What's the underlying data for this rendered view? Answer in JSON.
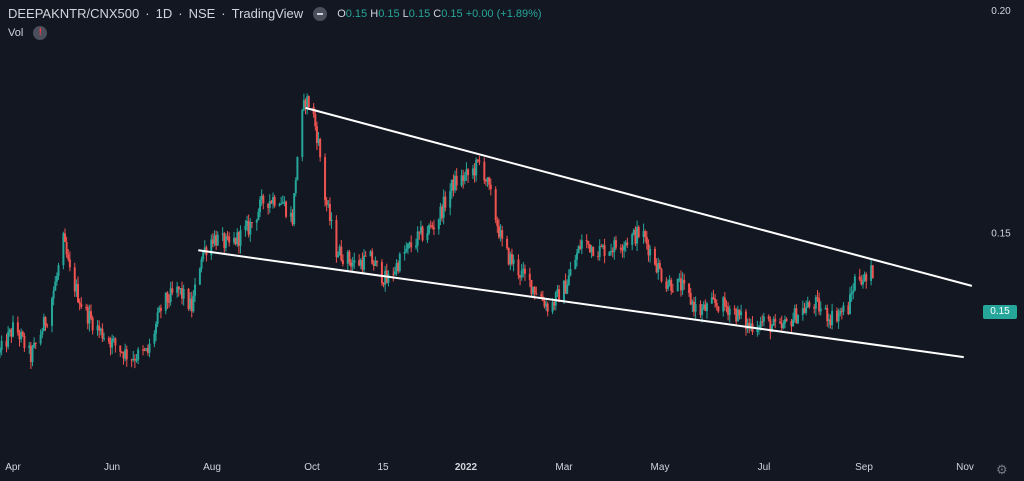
{
  "header": {
    "symbol": "DEEPAKNTR/CNX500",
    "interval": "1D",
    "exchange": "NSE",
    "source": "TradingView",
    "ohlc": {
      "o_label": "O",
      "o": "0.15",
      "h_label": "H",
      "h": "0.15",
      "l_label": "L",
      "l": "0.15",
      "c_label": "C",
      "c": "0.15",
      "change": "+0.00 (+1.89%)"
    },
    "vol_label": "Vol"
  },
  "last_price": "0.15",
  "colors": {
    "background": "#131722",
    "up": "#26a69a",
    "down": "#ef5350",
    "trendline": "#ffffff",
    "text": "#d1d4dc"
  },
  "chart_data": {
    "type": "candlestick",
    "xlabel": "",
    "ylabel": "",
    "ylim": [
      0.1,
      0.2
    ],
    "y_ticks": [
      "0.20",
      "0.15"
    ],
    "x_ticks": [
      "Apr",
      "Jun",
      "Aug",
      "Oct",
      "15",
      "2022",
      "Mar",
      "May",
      "Jul",
      "Sep",
      "Nov"
    ],
    "x_start": "2021-04-01",
    "x_end": "2022-11-25",
    "series_close": [
      [
        "2021-04-01",
        0.123
      ],
      [
        "2021-04-10",
        0.129
      ],
      [
        "2021-04-20",
        0.122
      ],
      [
        "2021-04-30",
        0.131
      ],
      [
        "2021-05-06",
        0.14
      ],
      [
        "2021-05-10",
        0.148
      ],
      [
        "2021-05-14",
        0.141
      ],
      [
        "2021-05-22",
        0.133
      ],
      [
        "2021-06-01",
        0.128
      ],
      [
        "2021-06-10",
        0.125
      ],
      [
        "2021-06-20",
        0.122
      ],
      [
        "2021-07-01",
        0.123
      ],
      [
        "2021-07-10",
        0.134
      ],
      [
        "2021-07-20",
        0.137
      ],
      [
        "2021-07-28",
        0.133
      ],
      [
        "2021-08-03",
        0.145
      ],
      [
        "2021-08-10",
        0.149
      ],
      [
        "2021-08-20",
        0.147
      ],
      [
        "2021-09-01",
        0.151
      ],
      [
        "2021-09-10",
        0.157
      ],
      [
        "2021-09-20",
        0.158
      ],
      [
        "2021-09-28",
        0.153
      ],
      [
        "2021-10-02",
        0.172
      ],
      [
        "2021-10-06",
        0.18
      ],
      [
        "2021-10-10",
        0.178
      ],
      [
        "2021-10-14",
        0.17
      ],
      [
        "2021-10-18",
        0.158
      ],
      [
        "2021-10-25",
        0.146
      ],
      [
        "2021-11-05",
        0.143
      ],
      [
        "2021-11-15",
        0.144
      ],
      [
        "2021-11-25",
        0.139
      ],
      [
        "2021-12-05",
        0.145
      ],
      [
        "2021-12-15",
        0.149
      ],
      [
        "2021-12-25",
        0.152
      ],
      [
        "2022-01-05",
        0.161
      ],
      [
        "2022-01-15",
        0.163
      ],
      [
        "2022-01-22",
        0.166
      ],
      [
        "2022-01-28",
        0.158
      ],
      [
        "2022-02-05",
        0.146
      ],
      [
        "2022-02-15",
        0.141
      ],
      [
        "2022-02-25",
        0.137
      ],
      [
        "2022-03-05",
        0.133
      ],
      [
        "2022-03-15",
        0.138
      ],
      [
        "2022-03-25",
        0.148
      ],
      [
        "2022-04-05",
        0.146
      ],
      [
        "2022-04-15",
        0.147
      ],
      [
        "2022-04-25",
        0.149
      ],
      [
        "2022-05-01",
        0.15
      ],
      [
        "2022-05-06",
        0.146
      ],
      [
        "2022-05-15",
        0.139
      ],
      [
        "2022-05-25",
        0.138
      ],
      [
        "2022-06-05",
        0.132
      ],
      [
        "2022-06-15",
        0.134
      ],
      [
        "2022-06-25",
        0.133
      ],
      [
        "2022-07-05",
        0.129
      ],
      [
        "2022-07-15",
        0.13
      ],
      [
        "2022-07-25",
        0.128
      ],
      [
        "2022-08-05",
        0.132
      ],
      [
        "2022-08-15",
        0.134
      ],
      [
        "2022-08-25",
        0.131
      ],
      [
        "2022-09-05",
        0.133
      ],
      [
        "2022-09-10",
        0.141
      ],
      [
        "2022-09-16",
        0.139
      ],
      [
        "2022-09-21",
        0.142
      ]
    ],
    "trendlines": [
      {
        "name": "",
        "points": [
          [
            "2021-10-06",
            0.178
          ],
          [
            "2022-11-20",
            0.138
          ]
        ]
      },
      {
        "name": "",
        "points": [
          [
            "2021-08-01",
            0.146
          ],
          [
            "2022-11-15",
            0.122
          ]
        ]
      }
    ],
    "grid": false,
    "legend": "top-left"
  }
}
